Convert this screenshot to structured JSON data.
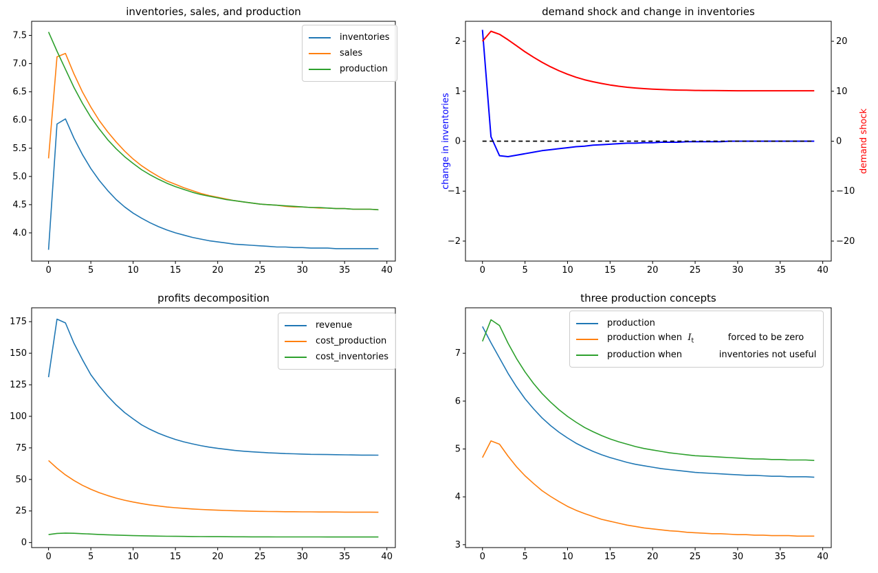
{
  "figure_background": "#ffffff",
  "chart_data": [
    {
      "id": "inventories-sales-production",
      "position": "top-left",
      "type": "line",
      "title": "inventories, sales, and production",
      "x_range": [
        0,
        39
      ],
      "xlim": [
        -2,
        41
      ],
      "ylim": [
        3.5,
        7.75
      ],
      "grid": false,
      "xticks": {
        "values": [
          0,
          5,
          10,
          15,
          20,
          25,
          30,
          35,
          40
        ],
        "labels": [
          "0",
          "5",
          "10",
          "15",
          "20",
          "25",
          "30",
          "35",
          "40"
        ]
      },
      "yticks": {
        "values": [
          4.0,
          4.5,
          5.0,
          5.5,
          6.0,
          6.5,
          7.0,
          7.5
        ],
        "labels": [
          "4.0",
          "4.5",
          "5.0",
          "5.5",
          "6.0",
          "6.5",
          "7.0",
          "7.5"
        ]
      },
      "legend": {
        "loc": "upper right"
      },
      "series": [
        {
          "name": "inventories",
          "label": "inventories",
          "color": "#1f77b4",
          "width": 1.6,
          "values": [
            3.7,
            5.93,
            6.02,
            5.68,
            5.39,
            5.14,
            4.93,
            4.75,
            4.59,
            4.46,
            4.35,
            4.26,
            4.18,
            4.11,
            4.05,
            4.0,
            3.96,
            3.92,
            3.89,
            3.86,
            3.84,
            3.82,
            3.8,
            3.79,
            3.78,
            3.77,
            3.76,
            3.75,
            3.75,
            3.74,
            3.74,
            3.73,
            3.73,
            3.73,
            3.72,
            3.72,
            3.72,
            3.72,
            3.72,
            3.72
          ]
        },
        {
          "name": "sales",
          "label": "sales",
          "color": "#ff7f0e",
          "width": 1.6,
          "values": [
            5.32,
            7.12,
            7.18,
            6.82,
            6.5,
            6.23,
            5.99,
            5.79,
            5.61,
            5.45,
            5.31,
            5.19,
            5.09,
            5.0,
            4.92,
            4.86,
            4.8,
            4.75,
            4.7,
            4.66,
            4.63,
            4.6,
            4.57,
            4.55,
            4.53,
            4.51,
            4.5,
            4.49,
            4.47,
            4.46,
            4.46,
            4.45,
            4.44,
            4.44,
            4.43,
            4.43,
            4.42,
            4.42,
            4.42,
            4.41
          ]
        },
        {
          "name": "production",
          "label": "production",
          "color": "#2ca02c",
          "width": 1.6,
          "values": [
            7.56,
            7.22,
            6.9,
            6.58,
            6.3,
            6.05,
            5.84,
            5.65,
            5.49,
            5.35,
            5.23,
            5.12,
            5.03,
            4.95,
            4.88,
            4.82,
            4.77,
            4.72,
            4.68,
            4.65,
            4.62,
            4.59,
            4.57,
            4.55,
            4.53,
            4.51,
            4.5,
            4.49,
            4.48,
            4.47,
            4.46,
            4.45,
            4.45,
            4.44,
            4.43,
            4.43,
            4.42,
            4.42,
            4.42,
            4.41
          ]
        }
      ]
    },
    {
      "id": "demand-shock-change-in-inventories",
      "position": "top-right",
      "type": "line",
      "title": "demand shock and change in inventories",
      "x_range": [
        0,
        39
      ],
      "xlim": [
        -2,
        41
      ],
      "ylim": [
        -2.4,
        2.4
      ],
      "ylim_right": [
        -24,
        24
      ],
      "grid": false,
      "ylabel_left": {
        "text": "change in inventories",
        "color": "#0000ff"
      },
      "ylabel_right": {
        "text": "demand shock",
        "color": "#ff0000"
      },
      "xticks": {
        "values": [
          0,
          5,
          10,
          15,
          20,
          25,
          30,
          35,
          40
        ],
        "labels": [
          "0",
          "5",
          "10",
          "15",
          "20",
          "25",
          "30",
          "35",
          "40"
        ]
      },
      "yticks": {
        "values": [
          -2,
          -1,
          0,
          1,
          2
        ],
        "labels": [
          "−2",
          "−1",
          "0",
          "1",
          "2"
        ]
      },
      "yticks_right": {
        "values": [
          -20,
          -10,
          0,
          10,
          20
        ],
        "labels": [
          "−20",
          "−10",
          "0",
          "10",
          "20"
        ]
      },
      "legend": null,
      "series": [
        {
          "name": "change-in-inventories",
          "label": "change in inventories",
          "color": "#0000ff",
          "width": 2,
          "values": [
            2.23,
            0.09,
            -0.29,
            -0.31,
            -0.28,
            -0.25,
            -0.22,
            -0.19,
            -0.17,
            -0.15,
            -0.13,
            -0.11,
            -0.1,
            -0.08,
            -0.07,
            -0.06,
            -0.05,
            -0.04,
            -0.04,
            -0.03,
            -0.03,
            -0.02,
            -0.02,
            -0.02,
            -0.01,
            -0.01,
            -0.01,
            -0.01,
            -0.01,
            0,
            0,
            0,
            0,
            0,
            0,
            0,
            0,
            0,
            0,
            0
          ]
        },
        {
          "name": "zero-line",
          "label": "zero",
          "color": "#000000",
          "width": 1.8,
          "dash": "6 4.5",
          "values": [
            0,
            0,
            0,
            0,
            0,
            0,
            0,
            0,
            0,
            0,
            0,
            0,
            0,
            0,
            0,
            0,
            0,
            0,
            0,
            0,
            0,
            0,
            0,
            0,
            0,
            0,
            0,
            0,
            0,
            0,
            0,
            0,
            0,
            0,
            0,
            0,
            0,
            0,
            0,
            0
          ]
        },
        {
          "name": "demand-shock",
          "label": "demand shock",
          "color": "#ff0000",
          "width": 2,
          "axis": "right",
          "values": [
            20.0,
            22.0,
            21.4,
            20.3,
            19.1,
            17.9,
            16.8,
            15.8,
            14.9,
            14.1,
            13.4,
            12.8,
            12.3,
            11.9,
            11.55,
            11.25,
            11.0,
            10.8,
            10.65,
            10.52,
            10.42,
            10.34,
            10.28,
            10.23,
            10.2,
            10.17,
            10.15,
            10.13,
            10.12,
            10.11,
            10.1,
            10.1,
            10.1,
            10.1,
            10.1,
            10.1,
            10.1,
            10.1,
            10.1,
            10.1
          ]
        }
      ]
    },
    {
      "id": "profits-decomposition",
      "position": "bottom-left",
      "type": "line",
      "title": "profits decomposition",
      "x_range": [
        0,
        39
      ],
      "xlim": [
        -2,
        41
      ],
      "ylim": [
        -4,
        186
      ],
      "grid": false,
      "xticks": {
        "values": [
          0,
          5,
          10,
          15,
          20,
          25,
          30,
          35,
          40
        ],
        "labels": [
          "0",
          "5",
          "10",
          "15",
          "20",
          "25",
          "30",
          "35",
          "40"
        ]
      },
      "yticks": {
        "values": [
          0,
          25,
          50,
          75,
          100,
          125,
          150,
          175
        ],
        "labels": [
          "0",
          "25",
          "50",
          "75",
          "100",
          "125",
          "150",
          "175"
        ]
      },
      "legend": {
        "loc": "upper right"
      },
      "series": [
        {
          "name": "revenue",
          "label": "revenue",
          "color": "#1f77b4",
          "width": 1.6,
          "values": [
            131,
            177,
            174,
            158,
            145,
            133,
            124,
            116,
            109,
            103,
            98,
            93.3,
            89.7,
            86.6,
            84,
            81.7,
            79.8,
            78.2,
            76.8,
            75.6,
            74.6,
            73.8,
            73,
            72.4,
            71.9,
            71.5,
            71.1,
            70.8,
            70.5,
            70.3,
            70.1,
            69.9,
            69.8,
            69.7,
            69.6,
            69.5,
            69.4,
            69.3,
            69.3,
            69.2
          ]
        },
        {
          "name": "cost_production",
          "label": "cost_production",
          "color": "#ff7f0e",
          "width": 1.6,
          "values": [
            65,
            58.9,
            53.6,
            49.2,
            45.4,
            42.2,
            39.5,
            37.2,
            35.2,
            33.5,
            32.1,
            30.9,
            29.8,
            29,
            28.2,
            27.6,
            27.1,
            26.6,
            26.2,
            25.9,
            25.6,
            25.4,
            25.2,
            25,
            24.8,
            24.7,
            24.6,
            24.5,
            24.4,
            24.4,
            24.3,
            24.3,
            24.2,
            24.2,
            24.2,
            24.1,
            24.1,
            24.1,
            24.1,
            24
          ]
        },
        {
          "name": "cost_inventories",
          "label": "cost_inventories",
          "color": "#2ca02c",
          "width": 1.6,
          "values": [
            6.3,
            7.2,
            7.5,
            7.3,
            7.0,
            6.7,
            6.4,
            6.1,
            5.9,
            5.7,
            5.5,
            5.35,
            5.2,
            5.1,
            5.0,
            4.92,
            4.85,
            4.78,
            4.72,
            4.67,
            4.63,
            4.59,
            4.56,
            4.53,
            4.51,
            4.49,
            4.47,
            4.46,
            4.45,
            4.44,
            4.43,
            4.42,
            4.42,
            4.41,
            4.41,
            4.4,
            4.4,
            4.4,
            4.4,
            4.4
          ]
        }
      ]
    },
    {
      "id": "three-production-concepts",
      "position": "bottom-right",
      "type": "line",
      "title": "three production concepts",
      "x_range": [
        0,
        39
      ],
      "xlim": [
        -2,
        41
      ],
      "ylim": [
        2.94,
        7.95
      ],
      "grid": false,
      "xticks": {
        "values": [
          0,
          5,
          10,
          15,
          20,
          25,
          30,
          35,
          40
        ],
        "labels": [
          "0",
          "5",
          "10",
          "15",
          "20",
          "25",
          "30",
          "35",
          "40"
        ]
      },
      "yticks": {
        "values": [
          3,
          4,
          5,
          6,
          7
        ],
        "labels": [
          "3",
          "4",
          "5",
          "6",
          "7"
        ]
      },
      "legend": {
        "loc": "upper center"
      },
      "series": [
        {
          "name": "production",
          "label": "production",
          "color": "#1f77b4",
          "width": 1.6,
          "values": [
            7.56,
            7.22,
            6.9,
            6.58,
            6.3,
            6.05,
            5.84,
            5.65,
            5.49,
            5.35,
            5.23,
            5.12,
            5.03,
            4.95,
            4.88,
            4.82,
            4.77,
            4.72,
            4.68,
            4.65,
            4.62,
            4.59,
            4.57,
            4.55,
            4.53,
            4.51,
            4.5,
            4.49,
            4.48,
            4.47,
            4.46,
            4.45,
            4.45,
            4.44,
            4.43,
            4.43,
            4.42,
            4.42,
            4.42,
            4.41
          ]
        },
        {
          "name": "production-when-It-forced-to-be-zero",
          "label": "production when  $I_t$            forced to be zero",
          "color": "#ff7f0e",
          "width": 1.6,
          "values": [
            4.82,
            5.17,
            5.1,
            4.85,
            4.63,
            4.44,
            4.28,
            4.13,
            4.01,
            3.9,
            3.8,
            3.72,
            3.65,
            3.59,
            3.53,
            3.49,
            3.45,
            3.41,
            3.38,
            3.35,
            3.33,
            3.31,
            3.29,
            3.28,
            3.26,
            3.25,
            3.24,
            3.23,
            3.23,
            3.22,
            3.21,
            3.21,
            3.2,
            3.2,
            3.19,
            3.19,
            3.19,
            3.18,
            3.18,
            3.18
          ]
        },
        {
          "name": "production-when-inventories-not-useful",
          "label": "production when             inventories not useful",
          "color": "#2ca02c",
          "width": 1.6,
          "values": [
            7.25,
            7.7,
            7.58,
            7.21,
            6.89,
            6.61,
            6.37,
            6.16,
            5.98,
            5.82,
            5.68,
            5.56,
            5.45,
            5.36,
            5.28,
            5.21,
            5.15,
            5.1,
            5.05,
            5.01,
            4.98,
            4.95,
            4.92,
            4.9,
            4.88,
            4.86,
            4.85,
            4.84,
            4.83,
            4.82,
            4.81,
            4.8,
            4.79,
            4.79,
            4.78,
            4.78,
            4.77,
            4.77,
            4.77,
            4.76
          ]
        }
      ]
    }
  ]
}
